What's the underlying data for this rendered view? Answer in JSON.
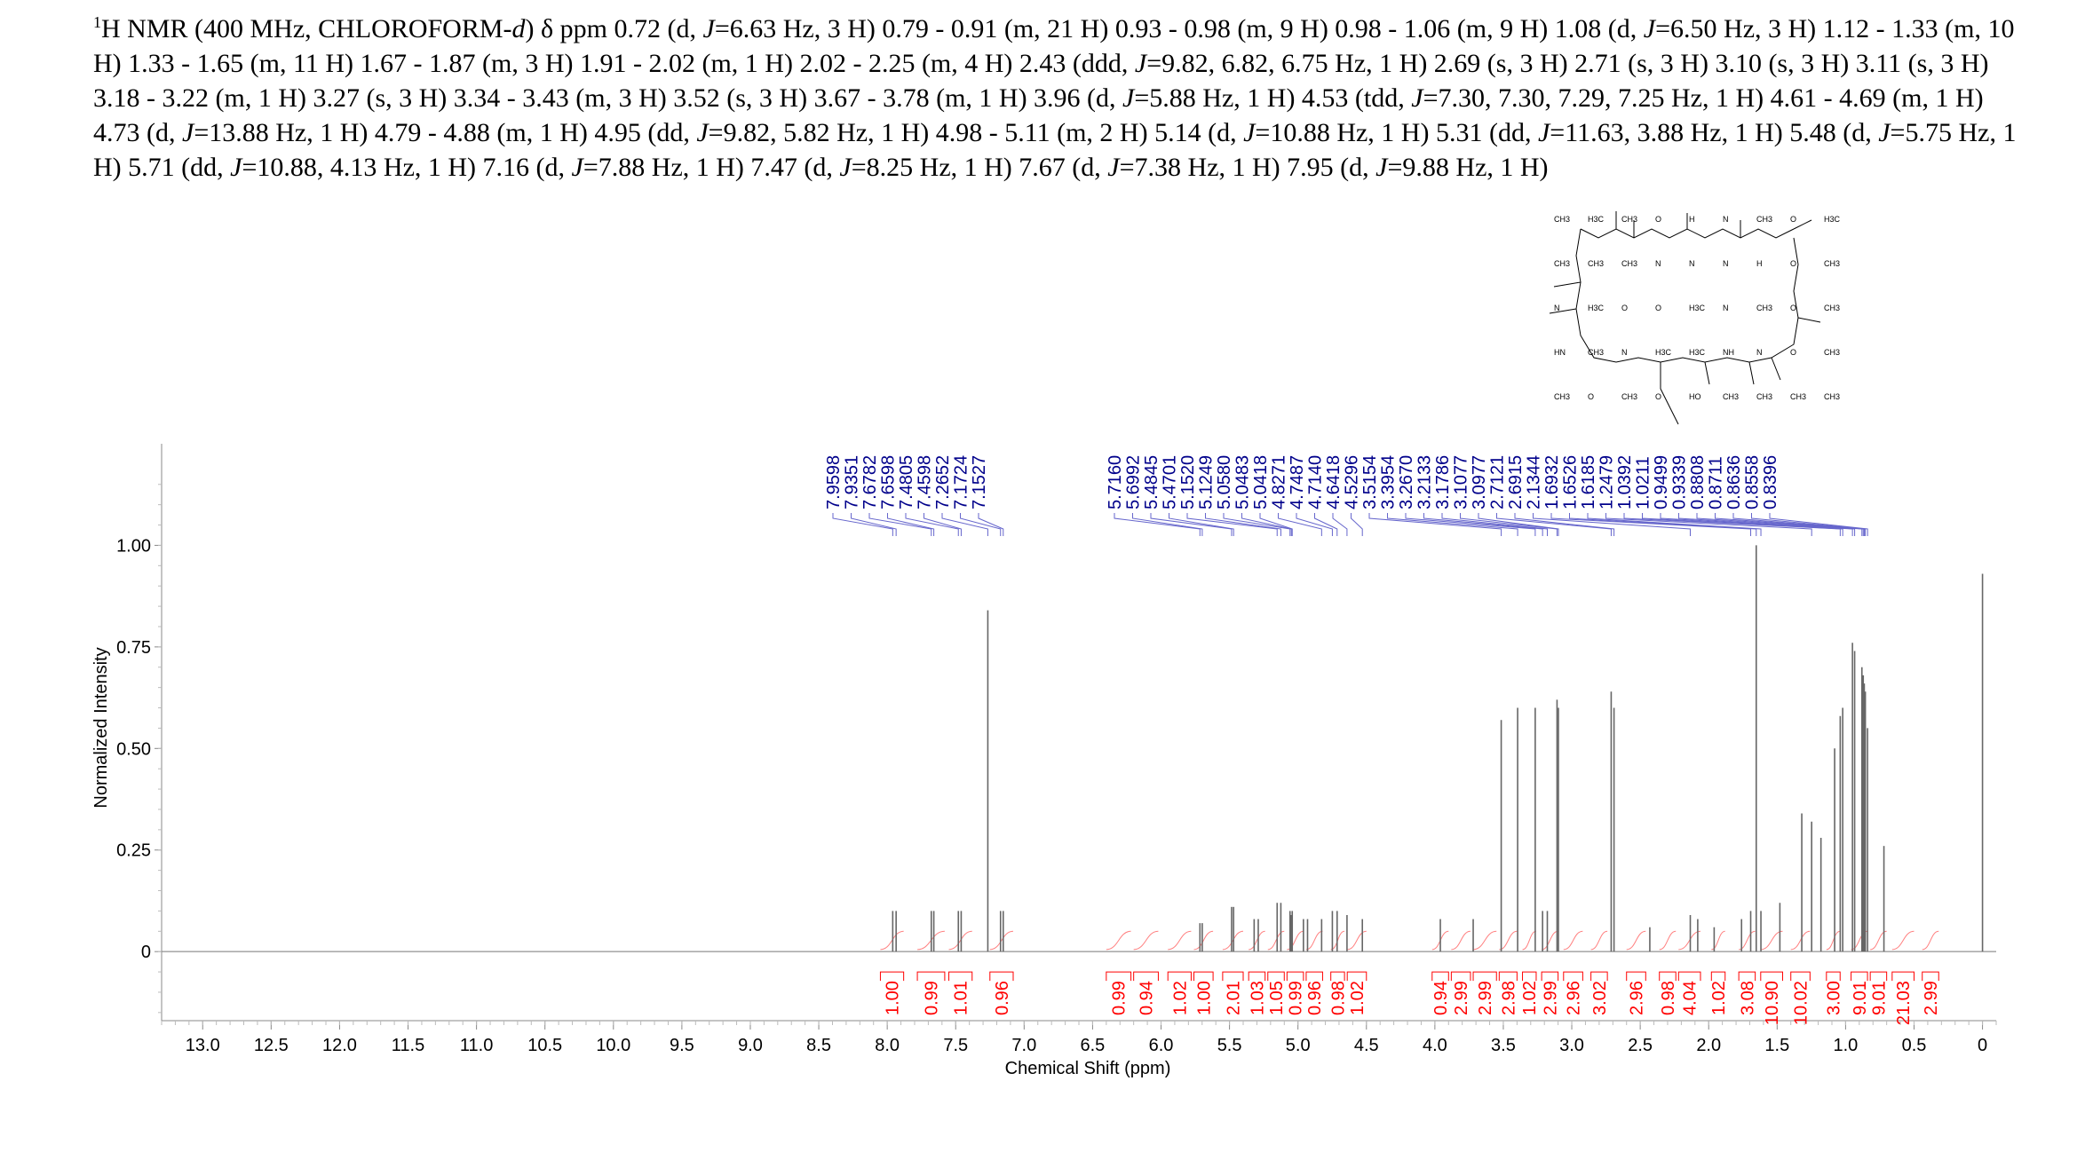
{
  "header": {
    "sup": "1",
    "text_parts": [
      {
        "t": "H NMR (400 MHz, CHLOROFORM-",
        "i": false
      },
      {
        "t": "d",
        "i": true
      },
      {
        "t": ") δ ppm 0.72 (d, ",
        "i": false
      },
      {
        "t": "J",
        "i": true
      },
      {
        "t": "=6.63 Hz, 3 H) 0.79 - 0.91 (m, 21 H) 0.93 - 0.98 (m, 9 H) 0.98 - 1.06 (m, 9 H) 1.08 (d, ",
        "i": false
      },
      {
        "t": "J",
        "i": true
      },
      {
        "t": "=6.50 Hz, 3 H) 1.12 - 1.33 (m, 10 H) 1.33 - 1.65 (m, 11 H) 1.67 - 1.87 (m, 3 H) 1.91 - 2.02 (m, 1 H) 2.02 - 2.25 (m, 4 H) 2.43 (ddd, ",
        "i": false
      },
      {
        "t": "J",
        "i": true
      },
      {
        "t": "=9.82, 6.82, 6.75 Hz, 1 H) 2.69 (s, 3 H) 2.71 (s, 3 H) 3.10 (s, 3 H) 3.11 (s, 3 H) 3.18 - 3.22 (m, 1 H) 3.27 (s, 3 H) 3.34 - 3.43 (m, 3 H) 3.52 (s, 3 H) 3.67 - 3.78 (m, 1 H) 3.96 (d, ",
        "i": false
      },
      {
        "t": "J",
        "i": true
      },
      {
        "t": "=5.88 Hz, 1 H) 4.53 (tdd, ",
        "i": false
      },
      {
        "t": "J",
        "i": true
      },
      {
        "t": "=7.30, 7.30, 7.29, 7.25 Hz, 1 H) 4.61 - 4.69 (m, 1 H) 4.73 (d, ",
        "i": false
      },
      {
        "t": "J",
        "i": true
      },
      {
        "t": "=13.88 Hz, 1 H) 4.79 - 4.88 (m, 1 H) 4.95 (dd, ",
        "i": false
      },
      {
        "t": "J",
        "i": true
      },
      {
        "t": "=9.82, 5.82 Hz, 1 H) 4.98 - 5.11 (m, 2 H) 5.14 (d, ",
        "i": false
      },
      {
        "t": "J",
        "i": true
      },
      {
        "t": "=10.88 Hz, 1 H) 5.31 (dd, ",
        "i": false
      },
      {
        "t": "J",
        "i": true
      },
      {
        "t": "=11.63, 3.88 Hz, 1 H) 5.48 (d, ",
        "i": false
      },
      {
        "t": "J",
        "i": true
      },
      {
        "t": "=5.75 Hz, 1 H) 5.71 (dd, ",
        "i": false
      },
      {
        "t": "J",
        "i": true
      },
      {
        "t": "=10.88, 4.13 Hz, 1 H) 7.16 (d, ",
        "i": false
      },
      {
        "t": "J",
        "i": true
      },
      {
        "t": "=7.88 Hz, 1 H) 7.47 (d, ",
        "i": false
      },
      {
        "t": "J",
        "i": true
      },
      {
        "t": "=8.25 Hz, 1 H) 7.67 (d, ",
        "i": false
      },
      {
        "t": "J",
        "i": true
      },
      {
        "t": "=7.38 Hz, 1 H) 7.95 (d, ",
        "i": false
      },
      {
        "t": "J",
        "i": true
      },
      {
        "t": "=9.88 Hz, 1 H)",
        "i": false
      }
    ]
  },
  "chart_data": {
    "type": "line",
    "xlabel": "Chemical Shift (ppm)",
    "ylabel": "Normalized Intensity",
    "xlim": [
      13.3,
      -0.1
    ],
    "x_reversed": true,
    "ylim": [
      -0.17,
      1.25
    ],
    "x_ticks": [
      "13.0",
      "12.5",
      "12.0",
      "11.5",
      "11.0",
      "10.5",
      "10.0",
      "9.5",
      "9.0",
      "8.5",
      "8.0",
      "7.5",
      "7.0",
      "6.5",
      "6.0",
      "5.5",
      "5.0",
      "4.5",
      "4.0",
      "3.5",
      "3.0",
      "2.5",
      "2.0",
      "1.5",
      "1.0",
      "0.5",
      "0"
    ],
    "y_ticks": [
      "1.00",
      "0.75",
      "0.50",
      "0.25",
      "0"
    ],
    "peak_labels": [
      "7.9598",
      "7.9351",
      "7.6782",
      "7.6598",
      "7.4805",
      "7.4598",
      "7.2652",
      "7.1724",
      "7.1527",
      "5.7160",
      "5.6992",
      "5.4845",
      "5.4701",
      "5.1520",
      "5.1249",
      "5.0580",
      "5.0483",
      "5.0418",
      "4.8271",
      "4.7487",
      "4.7140",
      "4.6418",
      "4.5296",
      "3.5154",
      "3.3954",
      "3.2670",
      "3.2133",
      "3.1786",
      "3.1077",
      "3.0977",
      "2.7121",
      "2.6915",
      "2.1344",
      "1.6932",
      "1.6526",
      "1.6185",
      "1.2479",
      "1.0392",
      "1.0211",
      "0.9499",
      "0.9339",
      "0.8808",
      "0.8711",
      "0.8636",
      "0.8558",
      "0.8396"
    ],
    "integrals": [
      {
        "value": "1.00",
        "from": 8.05,
        "to": 7.88
      },
      {
        "value": "0.99",
        "from": 7.78,
        "to": 7.58
      },
      {
        "value": "1.01",
        "from": 7.55,
        "to": 7.38
      },
      {
        "value": "0.96",
        "from": 7.25,
        "to": 7.08
      },
      {
        "value": "0.99",
        "from": 6.4,
        "to": 6.22
      },
      {
        "value": "0.94",
        "from": 6.2,
        "to": 6.02
      },
      {
        "value": "1.02",
        "from": 5.95,
        "to": 5.78
      },
      {
        "value": "1.00",
        "from": 5.76,
        "to": 5.62
      },
      {
        "value": "2.01",
        "from": 5.55,
        "to": 5.4
      },
      {
        "value": "1.03",
        "from": 5.36,
        "to": 5.24
      },
      {
        "value": "1.05",
        "from": 5.22,
        "to": 5.1
      },
      {
        "value": "0.99",
        "from": 5.08,
        "to": 4.96
      },
      {
        "value": "0.96",
        "from": 4.94,
        "to": 4.82
      },
      {
        "value": "0.98",
        "from": 4.76,
        "to": 4.66
      },
      {
        "value": "1.02",
        "from": 4.64,
        "to": 4.5
      },
      {
        "value": "0.94",
        "from": 4.02,
        "to": 3.9
      },
      {
        "value": "2.99",
        "from": 3.88,
        "to": 3.74
      },
      {
        "value": "2.99",
        "from": 3.72,
        "to": 3.55
      },
      {
        "value": "2.98",
        "from": 3.53,
        "to": 3.4
      },
      {
        "value": "1.02",
        "from": 3.36,
        "to": 3.26
      },
      {
        "value": "2.99",
        "from": 3.22,
        "to": 3.1
      },
      {
        "value": "2.96",
        "from": 3.06,
        "to": 2.92
      },
      {
        "value": "3.02",
        "from": 2.86,
        "to": 2.74
      },
      {
        "value": "2.96",
        "from": 2.6,
        "to": 2.46
      },
      {
        "value": "0.98",
        "from": 2.36,
        "to": 2.24
      },
      {
        "value": "4.04",
        "from": 2.22,
        "to": 2.06
      },
      {
        "value": "1.02",
        "from": 1.98,
        "to": 1.88
      },
      {
        "value": "3.08",
        "from": 1.78,
        "to": 1.66
      },
      {
        "value": "10.90",
        "from": 1.62,
        "to": 1.46
      },
      {
        "value": "10.02",
        "from": 1.4,
        "to": 1.26
      },
      {
        "value": "3.00",
        "from": 1.14,
        "to": 1.04
      },
      {
        "value": "9.01",
        "from": 0.96,
        "to": 0.84
      },
      {
        "value": "9.01",
        "from": 0.82,
        "to": 0.7
      },
      {
        "value": "21.03",
        "from": 0.66,
        "to": 0.5
      },
      {
        "value": "2.99",
        "from": 0.44,
        "to": 0.32
      }
    ],
    "peaks": [
      {
        "ppm": 7.9598,
        "h": 0.1
      },
      {
        "ppm": 7.9351,
        "h": 0.1
      },
      {
        "ppm": 7.6782,
        "h": 0.1
      },
      {
        "ppm": 7.6598,
        "h": 0.1
      },
      {
        "ppm": 7.4805,
        "h": 0.1
      },
      {
        "ppm": 7.4598,
        "h": 0.1
      },
      {
        "ppm": 7.2652,
        "h": 0.84
      },
      {
        "ppm": 7.1724,
        "h": 0.1
      },
      {
        "ppm": 7.1527,
        "h": 0.1
      },
      {
        "ppm": 5.716,
        "h": 0.07
      },
      {
        "ppm": 5.6992,
        "h": 0.07
      },
      {
        "ppm": 5.4845,
        "h": 0.11
      },
      {
        "ppm": 5.4701,
        "h": 0.11
      },
      {
        "ppm": 5.32,
        "h": 0.08
      },
      {
        "ppm": 5.29,
        "h": 0.08
      },
      {
        "ppm": 5.152,
        "h": 0.12
      },
      {
        "ppm": 5.1249,
        "h": 0.12
      },
      {
        "ppm": 5.058,
        "h": 0.1
      },
      {
        "ppm": 5.0483,
        "h": 0.09
      },
      {
        "ppm": 5.0418,
        "h": 0.1
      },
      {
        "ppm": 4.96,
        "h": 0.08
      },
      {
        "ppm": 4.93,
        "h": 0.08
      },
      {
        "ppm": 4.8271,
        "h": 0.08
      },
      {
        "ppm": 4.7487,
        "h": 0.1
      },
      {
        "ppm": 4.714,
        "h": 0.1
      },
      {
        "ppm": 4.6418,
        "h": 0.09
      },
      {
        "ppm": 4.5296,
        "h": 0.08
      },
      {
        "ppm": 3.96,
        "h": 0.08
      },
      {
        "ppm": 3.72,
        "h": 0.08
      },
      {
        "ppm": 3.5154,
        "h": 0.57
      },
      {
        "ppm": 3.3954,
        "h": 0.6
      },
      {
        "ppm": 3.267,
        "h": 0.6
      },
      {
        "ppm": 3.2133,
        "h": 0.1
      },
      {
        "ppm": 3.1786,
        "h": 0.1
      },
      {
        "ppm": 3.1077,
        "h": 0.62
      },
      {
        "ppm": 3.0977,
        "h": 0.6
      },
      {
        "ppm": 2.7121,
        "h": 0.64
      },
      {
        "ppm": 2.6915,
        "h": 0.6
      },
      {
        "ppm": 2.43,
        "h": 0.06
      },
      {
        "ppm": 2.1344,
        "h": 0.09
      },
      {
        "ppm": 2.08,
        "h": 0.08
      },
      {
        "ppm": 1.96,
        "h": 0.06
      },
      {
        "ppm": 1.76,
        "h": 0.08
      },
      {
        "ppm": 1.6932,
        "h": 0.1
      },
      {
        "ppm": 1.6526,
        "h": 1.0
      },
      {
        "ppm": 1.6185,
        "h": 0.1
      },
      {
        "ppm": 1.48,
        "h": 0.12
      },
      {
        "ppm": 1.32,
        "h": 0.34
      },
      {
        "ppm": 1.2479,
        "h": 0.32
      },
      {
        "ppm": 1.18,
        "h": 0.28
      },
      {
        "ppm": 1.08,
        "h": 0.5
      },
      {
        "ppm": 1.0392,
        "h": 0.58
      },
      {
        "ppm": 1.0211,
        "h": 0.6
      },
      {
        "ppm": 0.9499,
        "h": 0.76
      },
      {
        "ppm": 0.9339,
        "h": 0.74
      },
      {
        "ppm": 0.8808,
        "h": 0.7
      },
      {
        "ppm": 0.8711,
        "h": 0.68
      },
      {
        "ppm": 0.8636,
        "h": 0.66
      },
      {
        "ppm": 0.8558,
        "h": 0.64
      },
      {
        "ppm": 0.8396,
        "h": 0.55
      },
      {
        "ppm": 0.72,
        "h": 0.26
      },
      {
        "ppm": 0.0,
        "h": 0.93
      }
    ]
  },
  "structure": {
    "labels": [
      "CH3",
      "H3C",
      "CH3",
      "O",
      "H",
      "N",
      "CH3",
      "O",
      "H3C",
      "CH3",
      "CH3",
      "CH3",
      "N",
      "N",
      "N",
      "H",
      "O",
      "CH3",
      "N",
      "H3C",
      "O",
      "O",
      "H3C",
      "N",
      "CH3",
      "O",
      "CH3",
      "HN",
      "CH3",
      "N",
      "H3C",
      "H3C",
      "NH",
      "N",
      "O",
      "CH3",
      "CH3",
      "O",
      "CH3",
      "O",
      "HO",
      "CH3",
      "CH3",
      "CH3",
      "CH3"
    ]
  }
}
